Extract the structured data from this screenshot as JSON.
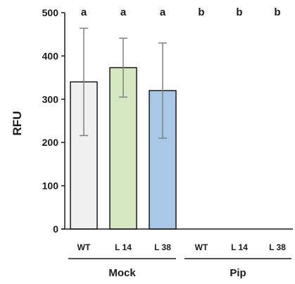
{
  "chart_data": {
    "type": "bar",
    "ylabel": "RFU",
    "ylim": [
      0,
      500
    ],
    "yticks": [
      "0",
      "100",
      "200",
      "300",
      "400",
      "500"
    ],
    "categories": [
      "WT",
      "L 14",
      "L 38",
      "WT",
      "L 14",
      "L 38"
    ],
    "groups": [
      {
        "label": "Mock",
        "category_indices": [
          0,
          1,
          2
        ]
      },
      {
        "label": "Pip",
        "category_indices": [
          3,
          4,
          5
        ]
      }
    ],
    "values": [
      340,
      373,
      320,
      0,
      0,
      0
    ],
    "errors": [
      124,
      68,
      110,
      0,
      0,
      0
    ],
    "significance_letters": [
      "a",
      "a",
      "a",
      "b",
      "b",
      "b"
    ],
    "bar_colors": [
      "#f0f0f0",
      "#d6e8c2",
      "#a9c7e6",
      "#ffffff",
      "#ffffff",
      "#ffffff"
    ],
    "error_bar_color": "#808080",
    "axis_color": "#1a1a1a",
    "grid": false
  }
}
